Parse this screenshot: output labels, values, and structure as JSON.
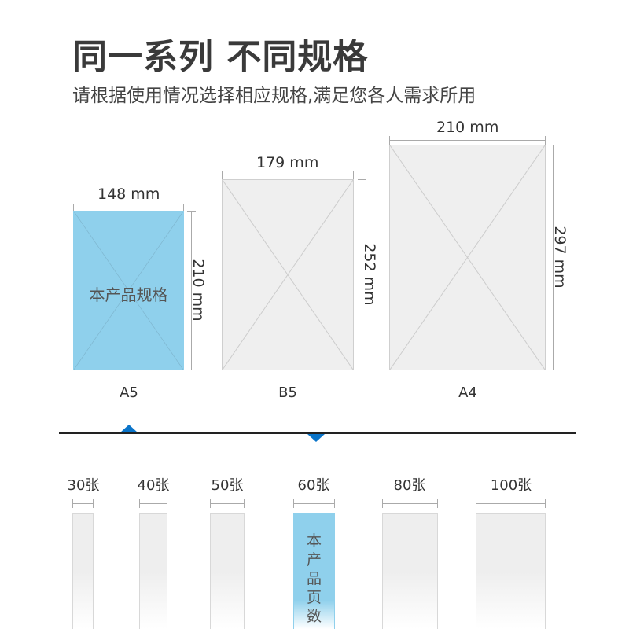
{
  "header": {
    "title": "同一系列 不同规格",
    "subtitle": "请根据使用情况选择相应规格,满足您各人需求所用"
  },
  "sizes": [
    {
      "name": "A5",
      "width": "148 mm",
      "height": "210 mm",
      "selected": true,
      "badge": "本产品规格"
    },
    {
      "name": "B5",
      "width": "179 mm",
      "height": "252 mm",
      "selected": false
    },
    {
      "name": "A4",
      "width": "210 mm",
      "height": "297 mm",
      "selected": false
    }
  ],
  "pages": [
    {
      "label": "30张",
      "selected": false
    },
    {
      "label": "40张",
      "selected": false
    },
    {
      "label": "50张",
      "selected": false
    },
    {
      "label": "60张",
      "selected": true,
      "badge": [
        "本",
        "产",
        "品",
        "页",
        "数"
      ]
    },
    {
      "label": "80张",
      "selected": false
    },
    {
      "label": "100张",
      "selected": false
    }
  ],
  "colors": {
    "highlight": "#8fd0ec",
    "marker": "#0a74c9",
    "sheet": "#efefef"
  }
}
